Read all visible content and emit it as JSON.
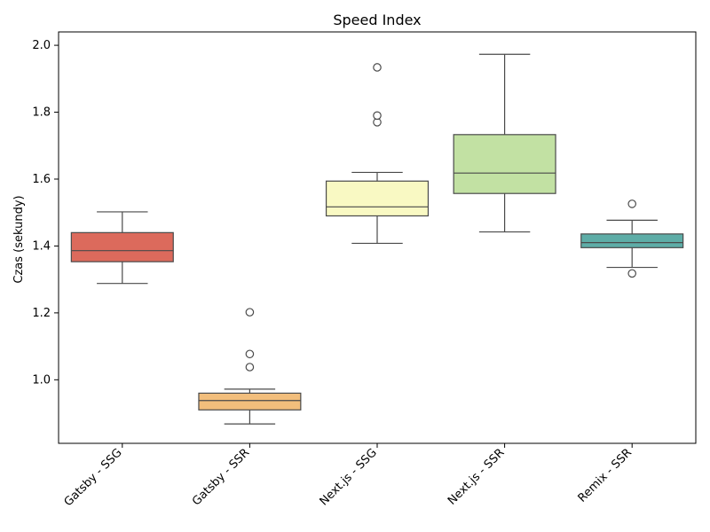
{
  "chart_data": {
    "type": "box",
    "title": "Speed Index",
    "xlabel": "",
    "ylabel": "Czas (sekundy)",
    "ylim": [
      0.81,
      2.04
    ],
    "yticks": [
      1.0,
      1.2,
      1.4,
      1.6,
      1.8,
      2.0
    ],
    "ytick_labels": [
      "1.0",
      "1.2",
      "1.4",
      "1.6",
      "1.8",
      "2.0"
    ],
    "grid": false,
    "legend": "none",
    "categories": [
      "Gatsby - SSG",
      "Gatsby - SSR",
      "Next.js - SSG",
      "Next.js - SSR",
      "Remix - SSR"
    ],
    "boxes": [
      {
        "category": "Gatsby - SSG",
        "whisker_low": 1.288,
        "q1": 1.353,
        "median": 1.386,
        "q3": 1.44,
        "whisker_high": 1.502,
        "outliers": [],
        "color": "#dc6a5c"
      },
      {
        "category": "Gatsby - SSR",
        "whisker_low": 0.868,
        "q1": 0.91,
        "median": 0.938,
        "q3": 0.96,
        "whisker_high": 0.972,
        "outliers": [
          1.038,
          1.077,
          1.202
        ],
        "color": "#f2be7c"
      },
      {
        "category": "Next.js - SSG",
        "whisker_low": 1.408,
        "q1": 1.49,
        "median": 1.517,
        "q3": 1.594,
        "whisker_high": 1.62,
        "outliers": [
          1.77,
          1.79,
          1.934
        ],
        "color": "#f9f9c3"
      },
      {
        "category": "Next.js - SSR",
        "whisker_low": 1.442,
        "q1": 1.557,
        "median": 1.618,
        "q3": 1.733,
        "whisker_high": 1.973,
        "outliers": [],
        "color": "#c2e1a3"
      },
      {
        "category": "Remix - SSR",
        "whisker_low": 1.336,
        "q1": 1.395,
        "median": 1.41,
        "q3": 1.436,
        "whisker_high": 1.477,
        "outliers": [
          1.318,
          1.526
        ],
        "color": "#5eada7"
      }
    ]
  }
}
